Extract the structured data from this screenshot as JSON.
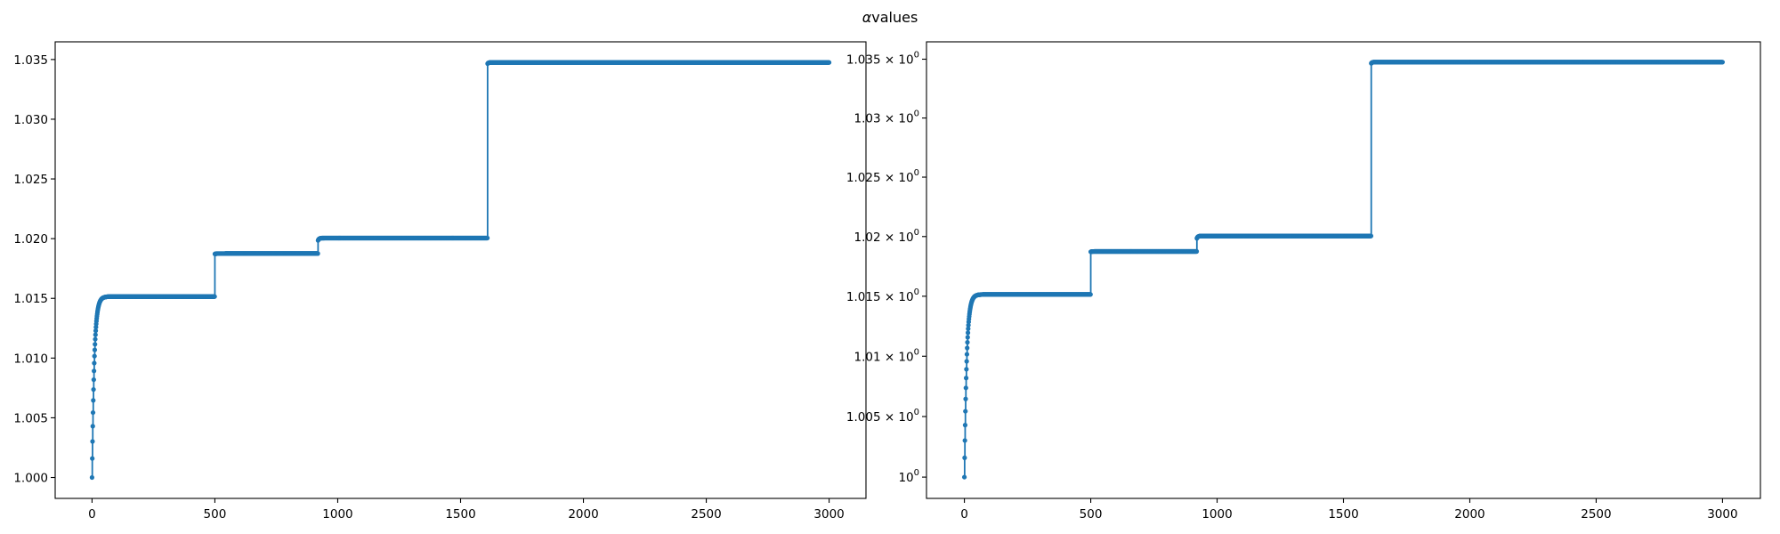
{
  "figure": {
    "title_symbol": "α",
    "title_text": "values"
  },
  "chart_data": [
    {
      "type": "line",
      "title": "",
      "xlabel": "",
      "ylabel": "",
      "xlim": [
        -150,
        3150
      ],
      "ylim": [
        0.99825,
        1.03648
      ],
      "grid": false,
      "xticks": [
        0,
        500,
        1000,
        1500,
        2000,
        2500,
        3000
      ],
      "xtick_labels": [
        "0",
        "500",
        "1000",
        "1500",
        "2000",
        "2500",
        "3000"
      ],
      "yticks": [
        1.0,
        1.005,
        1.01,
        1.015,
        1.02,
        1.025,
        1.03,
        1.035
      ],
      "ytick_labels": [
        {
          "base": "1.000"
        },
        {
          "base": "1.005"
        },
        {
          "base": "1.010"
        },
        {
          "base": "1.015"
        },
        {
          "base": "1.020"
        },
        {
          "base": "1.025"
        },
        {
          "base": "1.030"
        },
        {
          "base": "1.035"
        }
      ],
      "series": [
        {
          "color": "#1f77b4",
          "marker": "circle",
          "step_edges": [
            [
              0,
              500,
              1.0,
              1.01515,
              9
            ],
            [
              500,
              920,
              1.01872,
              1.01875,
              4
            ],
            [
              920,
              1610,
              1.01985,
              1.02005,
              4
            ],
            [
              1610,
              3000,
              1.03465,
              1.03475,
              3
            ]
          ]
        }
      ]
    },
    {
      "type": "line",
      "title": "",
      "xlabel": "",
      "ylabel": "",
      "y_scale": "log",
      "xlim": [
        -150,
        3150
      ],
      "ylim": [
        0.99825,
        1.03648
      ],
      "grid": false,
      "xticks": [
        0,
        500,
        1000,
        1500,
        2000,
        2500,
        3000
      ],
      "xtick_labels": [
        "0",
        "500",
        "1000",
        "1500",
        "2000",
        "2500",
        "3000"
      ],
      "yticks": [
        1.0,
        1.005,
        1.01,
        1.015,
        1.02,
        1.025,
        1.03,
        1.035
      ],
      "ytick_labels": [
        {
          "base": "10",
          "exp": "0"
        },
        {
          "base": "1.005 × 10",
          "exp": "0"
        },
        {
          "base": "1.01 × 10",
          "exp": "0"
        },
        {
          "base": "1.015 × 10",
          "exp": "0"
        },
        {
          "base": "1.02 × 10",
          "exp": "0"
        },
        {
          "base": "1.025 × 10",
          "exp": "0"
        },
        {
          "base": "1.03 × 10",
          "exp": "0"
        },
        {
          "base": "1.035 × 10",
          "exp": "0"
        }
      ],
      "series": [
        {
          "color": "#1f77b4",
          "marker": "circle",
          "step_edges": [
            [
              0,
              500,
              1.0,
              1.01515,
              9
            ],
            [
              500,
              920,
              1.01872,
              1.01875,
              4
            ],
            [
              920,
              1610,
              1.01985,
              1.02005,
              4
            ],
            [
              1610,
              3000,
              1.03465,
              1.03475,
              3
            ]
          ]
        }
      ]
    }
  ]
}
